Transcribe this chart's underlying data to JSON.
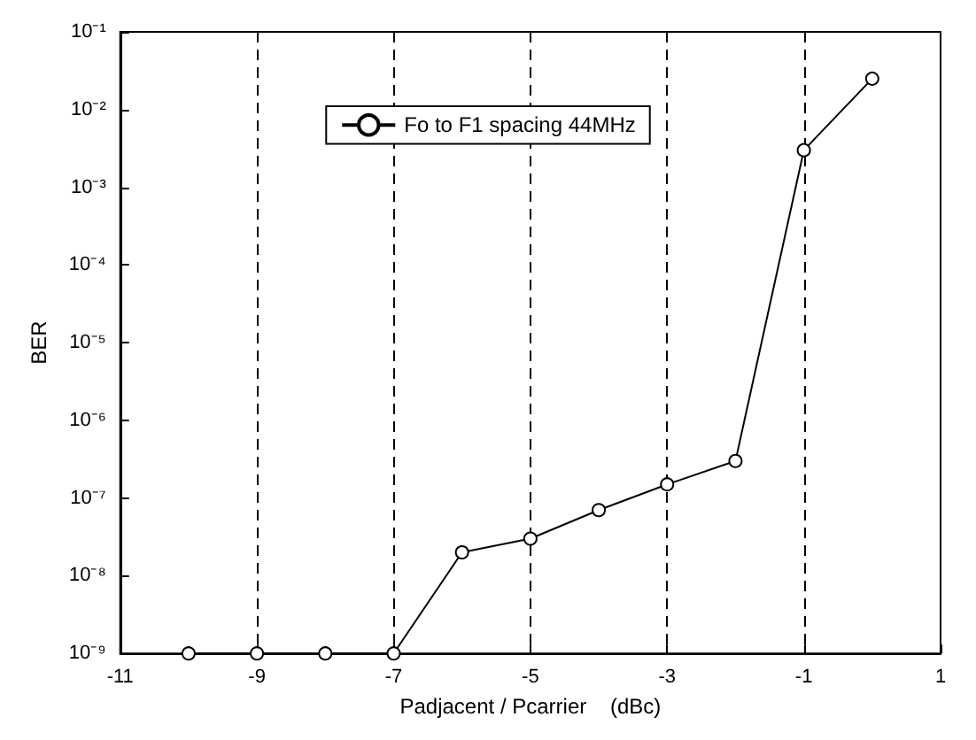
{
  "chart_data": {
    "type": "line",
    "xlabel": "Padjacent / Pcarrier    (dBc)",
    "ylabel": "BER",
    "x": [
      -10,
      -9,
      -8,
      -7,
      -6,
      -5,
      -4,
      -3,
      -2,
      -1,
      0
    ],
    "series": [
      {
        "name": "Fo to F1 spacing 44MHz",
        "color": "#000000",
        "values": [
          1e-09,
          1e-09,
          1e-09,
          1e-09,
          2e-08,
          3e-08,
          7e-08,
          1.5e-07,
          3e-07,
          0.003,
          0.025
        ]
      }
    ],
    "xlim": [
      -11,
      1
    ],
    "xticks": [
      -11,
      -9,
      -7,
      -5,
      -3,
      -1,
      1
    ],
    "ylim": [
      1e-09,
      0.1
    ],
    "yticks": [
      {
        "value": 1e-09,
        "label": "10⁻⁹"
      },
      {
        "value": 1e-08,
        "label": "10⁻⁸"
      },
      {
        "value": 1e-07,
        "label": "10⁻⁷"
      },
      {
        "value": 1e-06,
        "label": "10⁻⁶"
      },
      {
        "value": 1e-05,
        "label": "10⁻⁵"
      },
      {
        "value": 0.0001,
        "label": "10⁻⁴"
      },
      {
        "value": 0.001,
        "label": "10⁻³"
      },
      {
        "value": 0.01,
        "label": "10⁻²"
      },
      {
        "value": 0.1,
        "label": "10⁻¹"
      }
    ],
    "log": "y",
    "grid": "x",
    "legend": "top",
    "marker": "circle",
    "line_style": "solid"
  }
}
